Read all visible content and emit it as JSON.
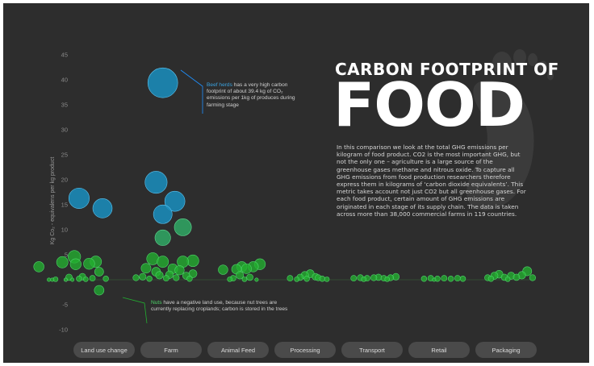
{
  "chart_data": {
    "type": "scatter",
    "title": "CARBON FOOTPRINT OF",
    "title_big": "FOOD",
    "description": "In this comparison we look at the total GHG emissions per kilogram of food product. CO2 is the most important GHG, but not the only one – agriculture is a large source of the greenhouse gases methane and nitrous oxide. To capture all GHG emissions from food production researchers therefore express them in kilograms of ‘carbon dioxide equivalents’. This metric takes account not just CO2 but all greenhouse gases. For each food product, certain amount of GHG emissions are originated in each stage of its supply chain. The data is taken across more than 38,000 commercial farms in 119 countries.",
    "ylabel": "Kg Co₂ - equivalens per kg product",
    "ylim": [
      -10,
      45
    ],
    "yticks": [
      "45",
      "40",
      "35",
      "30",
      "25",
      "20",
      "15",
      "10",
      "5",
      "0",
      "-5",
      "-10"
    ],
    "categories": [
      "Land use change",
      "Farm",
      "Animal Feed",
      "Processing",
      "Transport",
      "Retail",
      "Packaging"
    ],
    "colors": {
      "background": "#2d2d2d",
      "high": "#1a8fbf",
      "medium": "#2fb068",
      "low": "#22b030",
      "negative": "#20a030",
      "blue_highlight": "#3aa3e0",
      "green_highlight": "#4fd46a",
      "button": "#4a4a4a"
    },
    "annotations": [
      {
        "highlight": "Beef herds",
        "text": " has a very high carbon footprint of about 39.4 kg of CO₂ emissions per 1kg of produces during farming stage",
        "color": "blue"
      },
      {
        "highlight": "Nuts",
        "text": " have a negative land use, because nut trees are currently replacing croplands; carbon is stored in the trees",
        "color": "green"
      }
    ],
    "points": [
      {
        "stage": "Land use change",
        "x": 0.65,
        "y": 16.3
      },
      {
        "stage": "Land use change",
        "x": 1.0,
        "y": 14.3
      },
      {
        "stage": "Land use change",
        "x": 0.58,
        "y": 4.6
      },
      {
        "stage": "Land use change",
        "x": 0.4,
        "y": 3.5
      },
      {
        "stage": "Land use change",
        "x": 0.6,
        "y": 3.1
      },
      {
        "stage": "Land use change",
        "x": 0.8,
        "y": 3.2
      },
      {
        "stage": "Land use change",
        "x": 0.9,
        "y": 3.6
      },
      {
        "stage": "Land use change",
        "x": 0.05,
        "y": 2.6
      },
      {
        "stage": "Land use change",
        "x": 0.95,
        "y": 1.6
      },
      {
        "stage": "Land use change",
        "x": 0.5,
        "y": 0.5
      },
      {
        "stage": "Land use change",
        "x": 0.65,
        "y": 0.2
      },
      {
        "stage": "Land use change",
        "x": 0.7,
        "y": 0.6
      },
      {
        "stage": "Land use change",
        "x": 0.3,
        "y": 0.1
      },
      {
        "stage": "Land use change",
        "x": 0.2,
        "y": 0.0
      },
      {
        "stage": "Land use change",
        "x": 0.45,
        "y": 0.0
      },
      {
        "stage": "Land use change",
        "x": 0.85,
        "y": 0.3
      },
      {
        "stage": "Land use change",
        "x": 0.75,
        "y": 0.1
      },
      {
        "stage": "Land use change",
        "x": 1.05,
        "y": 0.2
      },
      {
        "stage": "Land use change",
        "x": 0.55,
        "y": 0.0
      },
      {
        "stage": "Land use change",
        "x": 0.25,
        "y": 0.0
      },
      {
        "stage": "Land use change",
        "x": 0.95,
        "y": -2.1
      },
      {
        "stage": "Farm",
        "x": 1.9,
        "y": 39.4
      },
      {
        "stage": "Farm",
        "x": 1.8,
        "y": 19.5
      },
      {
        "stage": "Farm",
        "x": 2.08,
        "y": 15.7
      },
      {
        "stage": "Farm",
        "x": 1.9,
        "y": 13.1
      },
      {
        "stage": "Farm",
        "x": 2.2,
        "y": 10.5
      },
      {
        "stage": "Farm",
        "x": 1.9,
        "y": 8.4
      },
      {
        "stage": "Farm",
        "x": 1.75,
        "y": 4.2
      },
      {
        "stage": "Farm",
        "x": 1.9,
        "y": 3.6
      },
      {
        "stage": "Farm",
        "x": 2.2,
        "y": 3.6
      },
      {
        "stage": "Farm",
        "x": 2.35,
        "y": 3.8
      },
      {
        "stage": "Farm",
        "x": 1.65,
        "y": 2.3
      },
      {
        "stage": "Farm",
        "x": 2.05,
        "y": 2.2
      },
      {
        "stage": "Farm",
        "x": 2.15,
        "y": 1.9
      },
      {
        "stage": "Farm",
        "x": 1.8,
        "y": 1.6
      },
      {
        "stage": "Farm",
        "x": 1.5,
        "y": 0.4
      },
      {
        "stage": "Farm",
        "x": 1.6,
        "y": 0.6
      },
      {
        "stage": "Farm",
        "x": 1.7,
        "y": 0.2
      },
      {
        "stage": "Farm",
        "x": 1.85,
        "y": 0.9
      },
      {
        "stage": "Farm",
        "x": 1.95,
        "y": 0.3
      },
      {
        "stage": "Farm",
        "x": 2.0,
        "y": 1.0
      },
      {
        "stage": "Farm",
        "x": 2.1,
        "y": 0.4
      },
      {
        "stage": "Farm",
        "x": 2.25,
        "y": 0.8
      },
      {
        "stage": "Farm",
        "x": 2.3,
        "y": 0.2
      },
      {
        "stage": "Farm",
        "x": 2.35,
        "y": 1.2
      },
      {
        "stage": "Animal Feed",
        "x": 2.8,
        "y": 2.0
      },
      {
        "stage": "Animal Feed",
        "x": 3.0,
        "y": 2.1
      },
      {
        "stage": "Animal Feed",
        "x": 3.08,
        "y": 2.6
      },
      {
        "stage": "Animal Feed",
        "x": 3.15,
        "y": 2.2
      },
      {
        "stage": "Animal Feed",
        "x": 3.25,
        "y": 2.6
      },
      {
        "stage": "Animal Feed",
        "x": 3.35,
        "y": 3.1
      },
      {
        "stage": "Animal Feed",
        "x": 2.95,
        "y": 0.3
      },
      {
        "stage": "Animal Feed",
        "x": 3.05,
        "y": 0.9
      },
      {
        "stage": "Animal Feed",
        "x": 3.12,
        "y": 0.1
      },
      {
        "stage": "Animal Feed",
        "x": 3.2,
        "y": 0.5
      },
      {
        "stage": "Animal Feed",
        "x": 2.9,
        "y": 0.1
      },
      {
        "stage": "Animal Feed",
        "x": 3.3,
        "y": 0.0
      },
      {
        "stage": "Processing",
        "x": 3.8,
        "y": 0.3
      },
      {
        "stage": "Processing",
        "x": 3.95,
        "y": 0.5
      },
      {
        "stage": "Processing",
        "x": 4.02,
        "y": 0.9
      },
      {
        "stage": "Processing",
        "x": 4.1,
        "y": 1.2
      },
      {
        "stage": "Processing",
        "x": 4.18,
        "y": 0.6
      },
      {
        "stage": "Processing",
        "x": 4.28,
        "y": 0.2
      },
      {
        "stage": "Processing",
        "x": 3.9,
        "y": 0.1
      },
      {
        "stage": "Processing",
        "x": 4.05,
        "y": 0.2
      },
      {
        "stage": "Processing",
        "x": 4.22,
        "y": 0.4
      },
      {
        "stage": "Processing",
        "x": 4.35,
        "y": 0.1
      },
      {
        "stage": "Transport",
        "x": 4.75,
        "y": 0.3
      },
      {
        "stage": "Transport",
        "x": 4.85,
        "y": 0.4
      },
      {
        "stage": "Transport",
        "x": 4.95,
        "y": 0.3
      },
      {
        "stage": "Transport",
        "x": 5.05,
        "y": 0.4
      },
      {
        "stage": "Transport",
        "x": 5.12,
        "y": 0.5
      },
      {
        "stage": "Transport",
        "x": 5.2,
        "y": 0.3
      },
      {
        "stage": "Transport",
        "x": 5.3,
        "y": 0.4
      },
      {
        "stage": "Transport",
        "x": 5.38,
        "y": 0.6
      },
      {
        "stage": "Transport",
        "x": 4.9,
        "y": 0.1
      },
      {
        "stage": "Transport",
        "x": 5.25,
        "y": 0.1
      },
      {
        "stage": "Retail",
        "x": 5.8,
        "y": 0.2
      },
      {
        "stage": "Retail",
        "x": 5.9,
        "y": 0.3
      },
      {
        "stage": "Retail",
        "x": 6.0,
        "y": 0.2
      },
      {
        "stage": "Retail",
        "x": 6.1,
        "y": 0.3
      },
      {
        "stage": "Retail",
        "x": 6.2,
        "y": 0.2
      },
      {
        "stage": "Retail",
        "x": 6.3,
        "y": 0.3
      },
      {
        "stage": "Retail",
        "x": 6.38,
        "y": 0.2
      },
      {
        "stage": "Retail",
        "x": 5.95,
        "y": 0.0
      },
      {
        "stage": "Packaging",
        "x": 6.75,
        "y": 0.4
      },
      {
        "stage": "Packaging",
        "x": 6.85,
        "y": 0.8
      },
      {
        "stage": "Packaging",
        "x": 6.92,
        "y": 1.1
      },
      {
        "stage": "Packaging",
        "x": 7.0,
        "y": 0.5
      },
      {
        "stage": "Packaging",
        "x": 7.1,
        "y": 0.8
      },
      {
        "stage": "Packaging",
        "x": 7.18,
        "y": 0.5
      },
      {
        "stage": "Packaging",
        "x": 7.26,
        "y": 0.9
      },
      {
        "stage": "Packaging",
        "x": 7.34,
        "y": 1.7
      },
      {
        "stage": "Packaging",
        "x": 7.42,
        "y": 0.4
      },
      {
        "stage": "Packaging",
        "x": 6.8,
        "y": 0.2
      },
      {
        "stage": "Packaging",
        "x": 7.05,
        "y": 0.1
      }
    ]
  }
}
